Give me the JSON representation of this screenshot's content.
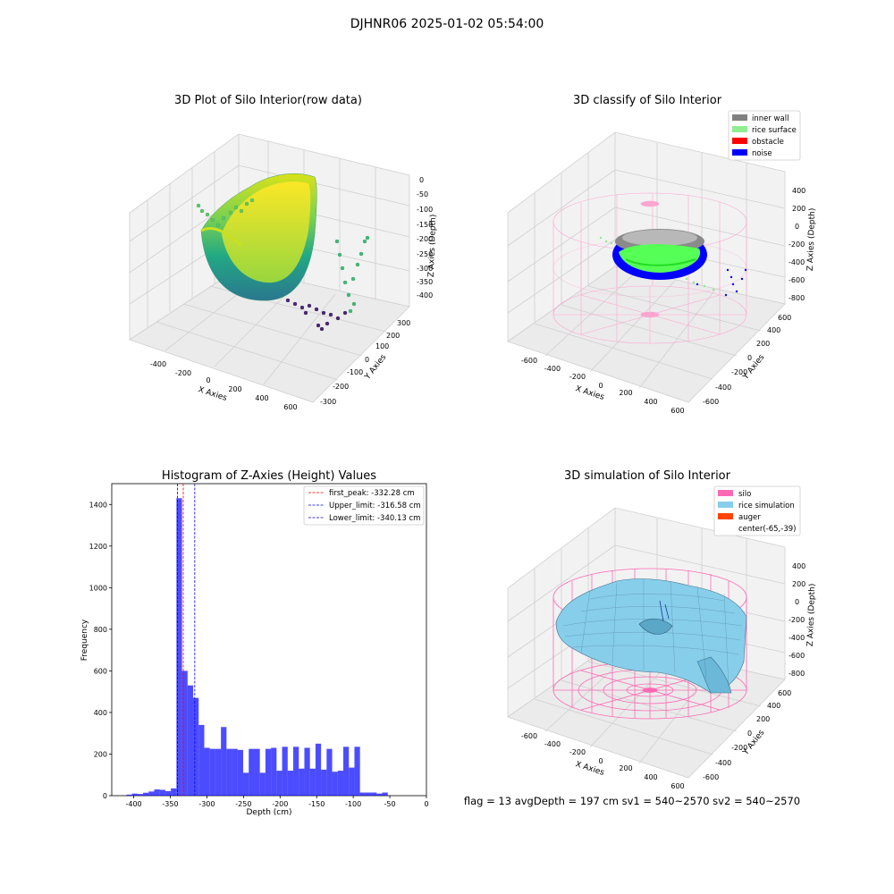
{
  "figure": {
    "suptitle": "DJHNR06 2025-01-02 05:54:00",
    "status_line": "flag = 13  avgDepth = 197 cm  sv1 = 540~2570  sv2 = 540~2570"
  },
  "chart_data": [
    {
      "type": "scatter",
      "projection": "3d",
      "title": "3D Plot of Silo Interior(row data)",
      "xlabel": "X Axies",
      "ylabel": "Y Axies",
      "zlabel": "Z Axies (Depth)",
      "xticks": [
        "-400",
        "-200",
        "0",
        "200",
        "400",
        "600"
      ],
      "yticks": [
        "-300",
        "-200",
        "-100",
        "0",
        "100",
        "200",
        "300"
      ],
      "zticks": [
        "0",
        "-50",
        "-100",
        "-150",
        "-200",
        "-250",
        "-300",
        "-350",
        "-400"
      ],
      "xlim": [
        -500,
        650
      ],
      "ylim": [
        -330,
        330
      ],
      "zlim": [
        -420,
        0
      ],
      "colormap": "viridis",
      "grid": true
    },
    {
      "type": "scatter",
      "projection": "3d",
      "title": "3D classify of Silo Interior",
      "xlabel": "X Axies",
      "ylabel": "Y Axies",
      "zlabel": "Z Axies (Depth)",
      "xticks": [
        "-600",
        "-400",
        "-200",
        "0",
        "200",
        "400",
        "600"
      ],
      "yticks": [
        "-600",
        "-400",
        "-200",
        "0",
        "200",
        "400",
        "600"
      ],
      "zticks": [
        "400",
        "200",
        "0",
        "-200",
        "-400",
        "-600",
        "-800"
      ],
      "legend_position": "upper-right",
      "legend": [
        {
          "label": "inner wall",
          "color": "#808080"
        },
        {
          "label": "rice surface",
          "color": "#90ee90"
        },
        {
          "label": "obstacle",
          "color": "#ff0000"
        },
        {
          "label": "noise",
          "color": "#0000ff"
        }
      ],
      "grid": true
    },
    {
      "type": "bar",
      "title": "Histogram of Z-Axies (Height) Values",
      "xlabel": "Depth (cm)",
      "ylabel": "Frequency",
      "xlim": [
        -430,
        0
      ],
      "ylim": [
        0,
        1500
      ],
      "xticks": [
        -400,
        -350,
        -300,
        -250,
        -200,
        -150,
        -100,
        -50,
        0
      ],
      "yticks": [
        0,
        200,
        400,
        600,
        800,
        1000,
        1200,
        1400
      ],
      "bin_start": -410,
      "bin_width": 7.6,
      "values": [
        5,
        10,
        8,
        14,
        20,
        30,
        28,
        22,
        35,
        1430,
        600,
        530,
        470,
        340,
        230,
        225,
        225,
        330,
        225,
        225,
        220,
        110,
        225,
        225,
        110,
        225,
        230,
        120,
        235,
        120,
        235,
        130,
        230,
        130,
        250,
        125,
        225,
        115,
        120,
        235,
        135,
        235,
        15,
        15,
        15,
        10,
        15
      ],
      "color": "#0000ff",
      "vlines": [
        {
          "label": "first_peak: -332.28 cm",
          "x": -332.28,
          "color": "#ff0000"
        },
        {
          "label": "Upper_limit: -316.58 cm",
          "x": -316.58,
          "color": "#0000ff"
        },
        {
          "label": "Lower_limit: -340.13 cm",
          "x": -340.13,
          "color": "#0000aa"
        }
      ],
      "legend_position": "upper-right",
      "grid": false
    },
    {
      "type": "surface",
      "projection": "3d",
      "title": "3D simulation of Silo Interior",
      "xlabel": "X Axies",
      "ylabel": "Y Axies",
      "zlabel": "Z Axies (Depth)",
      "xticks": [
        "-600",
        "-400",
        "-200",
        "0",
        "200",
        "400",
        "600"
      ],
      "yticks": [
        "-600",
        "-400",
        "-200",
        "0",
        "200",
        "400",
        "600"
      ],
      "zticks": [
        "400",
        "200",
        "0",
        "-200",
        "-400",
        "-600",
        "-800"
      ],
      "legend_position": "upper-right",
      "legend": [
        {
          "label": "silo",
          "color": "#ff69b4"
        },
        {
          "label": "rice simulation",
          "color": "#87ceeb"
        },
        {
          "label": "auger",
          "color": "#ff4500"
        },
        {
          "label": "center(-65,-39)",
          "color": ""
        }
      ],
      "grid": true
    }
  ]
}
